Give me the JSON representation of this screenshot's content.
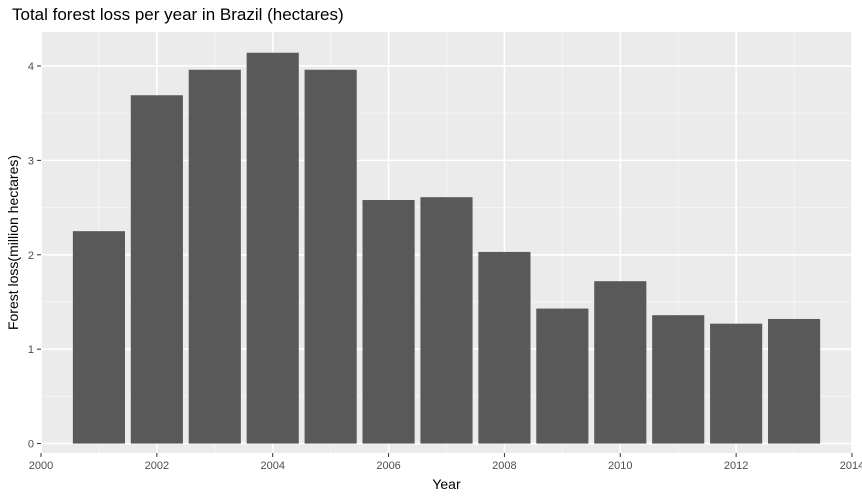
{
  "chart_data": {
    "type": "bar",
    "title": "Total forest loss per year in Brazil (hectares)",
    "xlabel": "Year",
    "ylabel": "Forest loss(million hectares)",
    "x": [
      2001,
      2002,
      2003,
      2004,
      2005,
      2006,
      2007,
      2008,
      2009,
      2010,
      2011,
      2012,
      2013
    ],
    "values": [
      2.25,
      3.69,
      3.96,
      4.14,
      3.96,
      2.58,
      2.61,
      2.03,
      1.43,
      1.72,
      1.36,
      1.27,
      1.32
    ],
    "xlim": [
      2000,
      2014
    ],
    "ylim": [
      -0.1,
      4.36
    ],
    "x_ticks": [
      2000,
      2002,
      2004,
      2006,
      2008,
      2010,
      2012,
      2014
    ],
    "y_ticks": [
      0,
      1,
      2,
      3,
      4
    ],
    "grid": true,
    "colors": {
      "bar": "#595959",
      "panel_background": "#ebebeb",
      "grid_major": "#ffffff",
      "grid_minor": "#f5f5f5",
      "tick_label": "#4d4d4d"
    }
  }
}
